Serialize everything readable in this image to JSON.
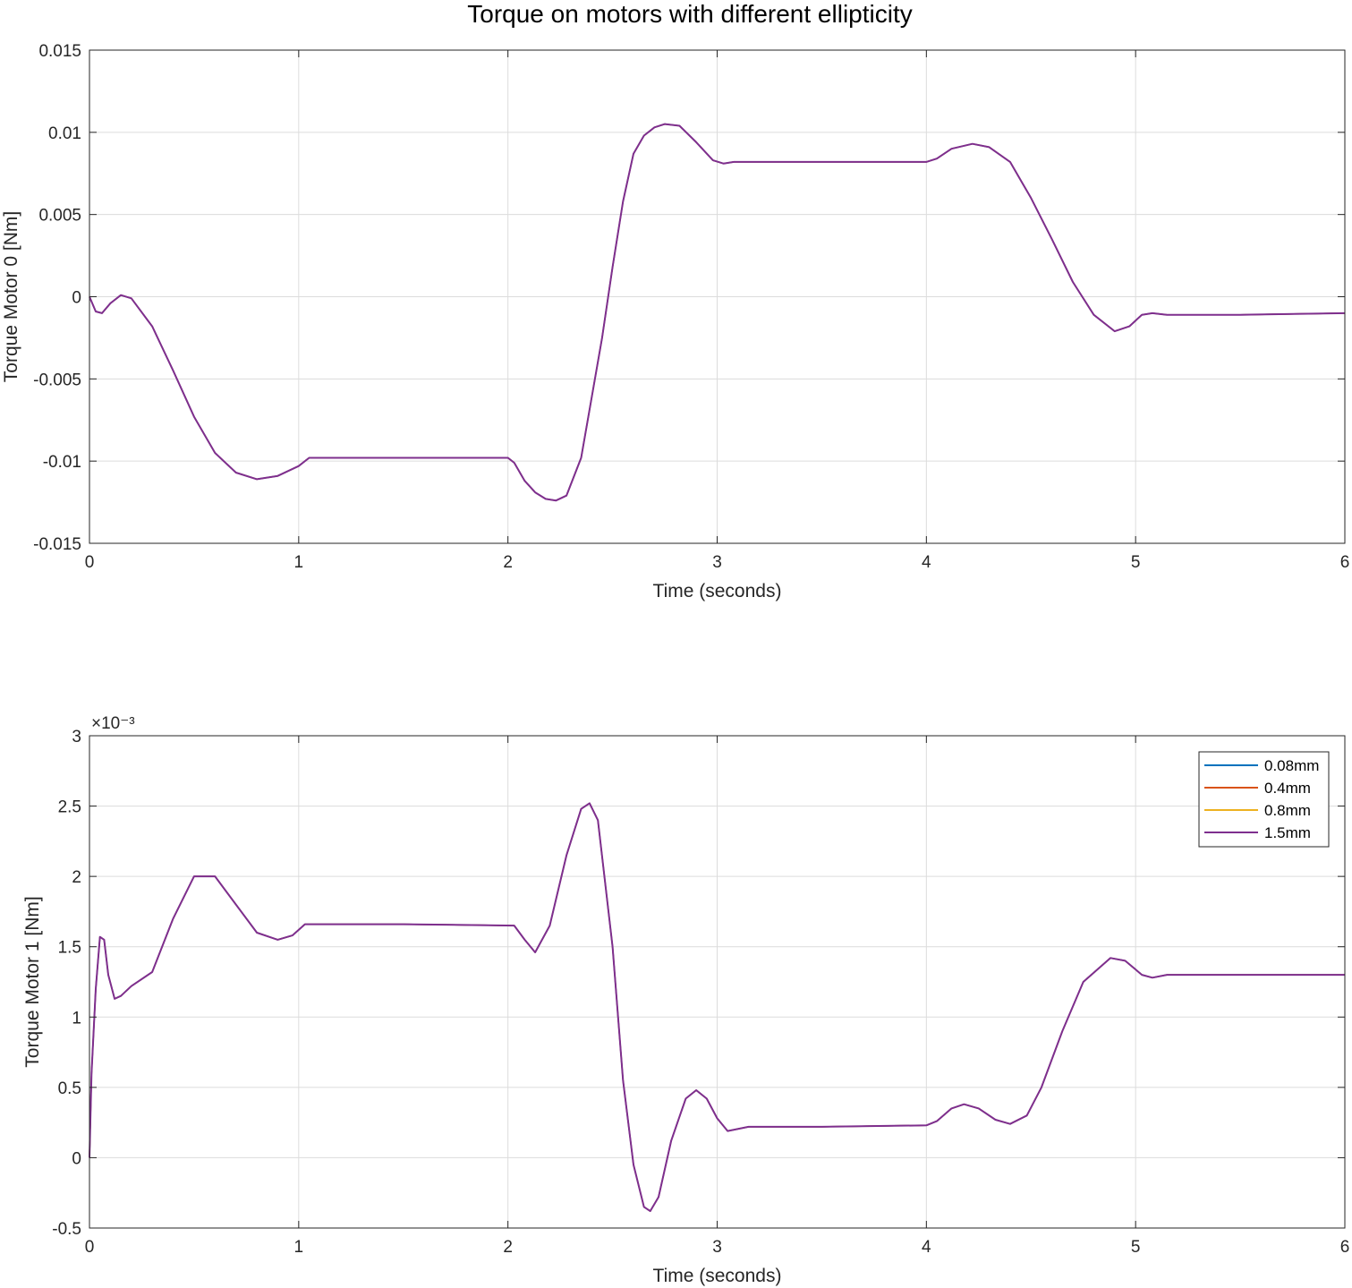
{
  "figure": {
    "title": "Torque on motors with different ellipticity",
    "colors": [
      "#0072BD",
      "#D95319",
      "#EDB120",
      "#7E2F8E"
    ]
  },
  "chart_data": [
    {
      "type": "line",
      "title": "Torque on motors with different ellipticity",
      "xlabel": "Time (seconds)",
      "ylabel": "Torque Motor 0 [Nm]",
      "xlim": [
        0,
        6
      ],
      "ylim": [
        -0.015,
        0.015
      ],
      "xticks": [
        0,
        1,
        2,
        3,
        4,
        5,
        6
      ],
      "xtick_labels": [
        "0",
        "1",
        "2",
        "3",
        "4",
        "5",
        "6"
      ],
      "yticks": [
        -0.015,
        -0.01,
        -0.005,
        0,
        0.005,
        0.01,
        0.015
      ],
      "ytick_labels": [
        "-0.015",
        "-0.01",
        "-0.005",
        "0",
        "0.005",
        "0.01",
        "0.015"
      ],
      "exponent_label": "",
      "grid": true,
      "legend": "",
      "x": [
        0,
        0.03,
        0.06,
        0.1,
        0.15,
        0.2,
        0.3,
        0.4,
        0.5,
        0.6,
        0.7,
        0.8,
        0.9,
        1.0,
        1.05,
        1.1,
        1.3,
        1.6,
        2.0,
        2.03,
        2.08,
        2.13,
        2.18,
        2.23,
        2.28,
        2.35,
        2.45,
        2.5,
        2.55,
        2.6,
        2.65,
        2.7,
        2.75,
        2.82,
        2.9,
        2.98,
        3.03,
        3.08,
        3.3,
        3.6,
        4.0,
        4.05,
        4.12,
        4.22,
        4.3,
        4.4,
        4.5,
        4.6,
        4.7,
        4.8,
        4.9,
        4.97,
        5.03,
        5.08,
        5.15,
        5.5,
        6.0
      ],
      "series": [
        {
          "name": "0.08mm",
          "y": [
            0,
            -0.0009,
            -0.001,
            -0.0004,
            0.0001,
            -0.0001,
            -0.0018,
            -0.0045,
            -0.0073,
            -0.0095,
            -0.0107,
            -0.0111,
            -0.0109,
            -0.0103,
            -0.0098,
            -0.0098,
            -0.0098,
            -0.0098,
            -0.0098,
            -0.0101,
            -0.0112,
            -0.0119,
            -0.0123,
            -0.0124,
            -0.0121,
            -0.0098,
            -0.0025,
            0.0018,
            0.0058,
            0.0087,
            0.0098,
            0.0103,
            0.0105,
            0.0104,
            0.0094,
            0.0083,
            0.0081,
            0.0082,
            0.0082,
            0.0082,
            0.0082,
            0.0084,
            0.009,
            0.0093,
            0.0091,
            0.0082,
            0.006,
            0.0035,
            0.0009,
            -0.0011,
            -0.0021,
            -0.0018,
            -0.0011,
            -0.001,
            -0.0011,
            -0.0011,
            -0.001
          ]
        },
        {
          "name": "0.4mm",
          "y": [
            0,
            -0.0009,
            -0.001,
            -0.0004,
            0.0001,
            -0.0001,
            -0.0018,
            -0.0045,
            -0.0073,
            -0.0095,
            -0.0107,
            -0.0111,
            -0.0109,
            -0.0103,
            -0.0098,
            -0.0098,
            -0.0098,
            -0.0098,
            -0.0098,
            -0.0101,
            -0.0112,
            -0.0119,
            -0.0123,
            -0.0124,
            -0.0121,
            -0.0098,
            -0.0025,
            0.0018,
            0.0058,
            0.0087,
            0.0098,
            0.0103,
            0.0105,
            0.0104,
            0.0094,
            0.0083,
            0.0081,
            0.0082,
            0.0082,
            0.0082,
            0.0082,
            0.0084,
            0.009,
            0.0093,
            0.0091,
            0.0082,
            0.006,
            0.0035,
            0.0009,
            -0.0011,
            -0.0021,
            -0.0018,
            -0.0011,
            -0.001,
            -0.0011,
            -0.0011,
            -0.001
          ]
        },
        {
          "name": "0.8mm",
          "y": [
            0,
            -0.0009,
            -0.001,
            -0.0004,
            0.0001,
            -0.0001,
            -0.0018,
            -0.0045,
            -0.0073,
            -0.0095,
            -0.0107,
            -0.0111,
            -0.0109,
            -0.0103,
            -0.0098,
            -0.0098,
            -0.0098,
            -0.0098,
            -0.0098,
            -0.0101,
            -0.0112,
            -0.0119,
            -0.0123,
            -0.0124,
            -0.0121,
            -0.0098,
            -0.0025,
            0.0018,
            0.0058,
            0.0087,
            0.0098,
            0.0103,
            0.0105,
            0.0104,
            0.0094,
            0.0083,
            0.0081,
            0.0082,
            0.0082,
            0.0082,
            0.0082,
            0.0084,
            0.009,
            0.0093,
            0.0091,
            0.0082,
            0.006,
            0.0035,
            0.0009,
            -0.0011,
            -0.0021,
            -0.0018,
            -0.0011,
            -0.001,
            -0.0011,
            -0.0011,
            -0.001
          ]
        },
        {
          "name": "1.5mm",
          "y": [
            0,
            -0.0009,
            -0.001,
            -0.0004,
            0.0001,
            -0.0001,
            -0.0018,
            -0.0045,
            -0.0073,
            -0.0095,
            -0.0107,
            -0.0111,
            -0.0109,
            -0.0103,
            -0.0098,
            -0.0098,
            -0.0098,
            -0.0098,
            -0.0098,
            -0.0101,
            -0.0112,
            -0.0119,
            -0.0123,
            -0.0124,
            -0.0121,
            -0.0098,
            -0.0025,
            0.0018,
            0.0058,
            0.0087,
            0.0098,
            0.0103,
            0.0105,
            0.0104,
            0.0094,
            0.0083,
            0.0081,
            0.0082,
            0.0082,
            0.0082,
            0.0082,
            0.0084,
            0.009,
            0.0093,
            0.0091,
            0.0082,
            0.006,
            0.0035,
            0.0009,
            -0.0011,
            -0.0021,
            -0.0018,
            -0.0011,
            -0.001,
            -0.0011,
            -0.0011,
            -0.001
          ]
        }
      ]
    },
    {
      "type": "line",
      "title": "",
      "xlabel": "Time (seconds)",
      "ylabel": "Torque Motor 1 [Nm]",
      "xlim": [
        0,
        6
      ],
      "ylim": [
        -0.5,
        3
      ],
      "xticks": [
        0,
        1,
        2,
        3,
        4,
        5,
        6
      ],
      "xtick_labels": [
        "0",
        "1",
        "2",
        "3",
        "4",
        "5",
        "6"
      ],
      "yticks": [
        -0.5,
        0,
        0.5,
        1,
        1.5,
        2,
        2.5,
        3
      ],
      "ytick_labels": [
        "-0.5",
        "0",
        "0.5",
        "1",
        "1.5",
        "2",
        "2.5",
        "3"
      ],
      "exponent_label": "×10⁻³",
      "grid": true,
      "legend": "top-right",
      "x": [
        0,
        0.01,
        0.03,
        0.05,
        0.07,
        0.09,
        0.12,
        0.15,
        0.2,
        0.3,
        0.4,
        0.5,
        0.6,
        0.7,
        0.8,
        0.9,
        0.97,
        1.03,
        1.1,
        1.5,
        2.03,
        2.08,
        2.13,
        2.2,
        2.28,
        2.35,
        2.39,
        2.43,
        2.5,
        2.55,
        2.6,
        2.65,
        2.68,
        2.72,
        2.78,
        2.85,
        2.9,
        2.95,
        3.0,
        3.05,
        3.15,
        3.5,
        4.0,
        4.05,
        4.12,
        4.18,
        4.25,
        4.33,
        4.4,
        4.48,
        4.55,
        4.65,
        4.75,
        4.88,
        4.95,
        5.03,
        5.08,
        5.15,
        5.5,
        6.0
      ],
      "series": [
        {
          "name": "0.08mm",
          "y": [
            0,
            0.6,
            1.2,
            1.57,
            1.55,
            1.3,
            1.13,
            1.15,
            1.22,
            1.32,
            1.7,
            2.0,
            2.0,
            1.8,
            1.6,
            1.55,
            1.58,
            1.66,
            1.66,
            1.66,
            1.65,
            1.55,
            1.46,
            1.65,
            2.15,
            2.48,
            2.52,
            2.4,
            1.5,
            0.55,
            -0.05,
            -0.35,
            -0.38,
            -0.28,
            0.12,
            0.42,
            0.48,
            0.42,
            0.28,
            0.19,
            0.22,
            0.22,
            0.23,
            0.26,
            0.35,
            0.38,
            0.35,
            0.27,
            0.24,
            0.3,
            0.5,
            0.9,
            1.25,
            1.42,
            1.4,
            1.3,
            1.28,
            1.3,
            1.3,
            1.3
          ]
        },
        {
          "name": "0.4mm",
          "y": [
            0,
            0.6,
            1.2,
            1.57,
            1.55,
            1.3,
            1.13,
            1.15,
            1.22,
            1.32,
            1.7,
            2.0,
            2.0,
            1.8,
            1.6,
            1.55,
            1.58,
            1.66,
            1.66,
            1.66,
            1.65,
            1.55,
            1.46,
            1.65,
            2.15,
            2.48,
            2.52,
            2.4,
            1.5,
            0.55,
            -0.05,
            -0.35,
            -0.38,
            -0.28,
            0.12,
            0.42,
            0.48,
            0.42,
            0.28,
            0.19,
            0.22,
            0.22,
            0.23,
            0.26,
            0.35,
            0.38,
            0.35,
            0.27,
            0.24,
            0.3,
            0.5,
            0.9,
            1.25,
            1.42,
            1.4,
            1.3,
            1.28,
            1.3,
            1.3,
            1.3
          ]
        },
        {
          "name": "0.8mm",
          "y": [
            0,
            0.6,
            1.2,
            1.57,
            1.55,
            1.3,
            1.13,
            1.15,
            1.22,
            1.32,
            1.7,
            2.0,
            2.0,
            1.8,
            1.6,
            1.55,
            1.58,
            1.66,
            1.66,
            1.66,
            1.65,
            1.55,
            1.46,
            1.65,
            2.15,
            2.48,
            2.52,
            2.4,
            1.5,
            0.55,
            -0.05,
            -0.35,
            -0.38,
            -0.28,
            0.12,
            0.42,
            0.48,
            0.42,
            0.28,
            0.19,
            0.22,
            0.22,
            0.23,
            0.26,
            0.35,
            0.38,
            0.35,
            0.27,
            0.24,
            0.3,
            0.5,
            0.9,
            1.25,
            1.42,
            1.4,
            1.3,
            1.28,
            1.3,
            1.3,
            1.3
          ]
        },
        {
          "name": "1.5mm",
          "y": [
            0,
            0.6,
            1.2,
            1.57,
            1.55,
            1.3,
            1.13,
            1.15,
            1.22,
            1.32,
            1.7,
            2.0,
            2.0,
            1.8,
            1.6,
            1.55,
            1.58,
            1.66,
            1.66,
            1.66,
            1.65,
            1.55,
            1.46,
            1.65,
            2.15,
            2.48,
            2.52,
            2.4,
            1.5,
            0.55,
            -0.05,
            -0.35,
            -0.38,
            -0.28,
            0.12,
            0.42,
            0.48,
            0.42,
            0.28,
            0.19,
            0.22,
            0.22,
            0.23,
            0.26,
            0.35,
            0.38,
            0.35,
            0.27,
            0.24,
            0.3,
            0.5,
            0.9,
            1.25,
            1.42,
            1.4,
            1.3,
            1.28,
            1.3,
            1.3,
            1.3
          ]
        }
      ]
    }
  ]
}
